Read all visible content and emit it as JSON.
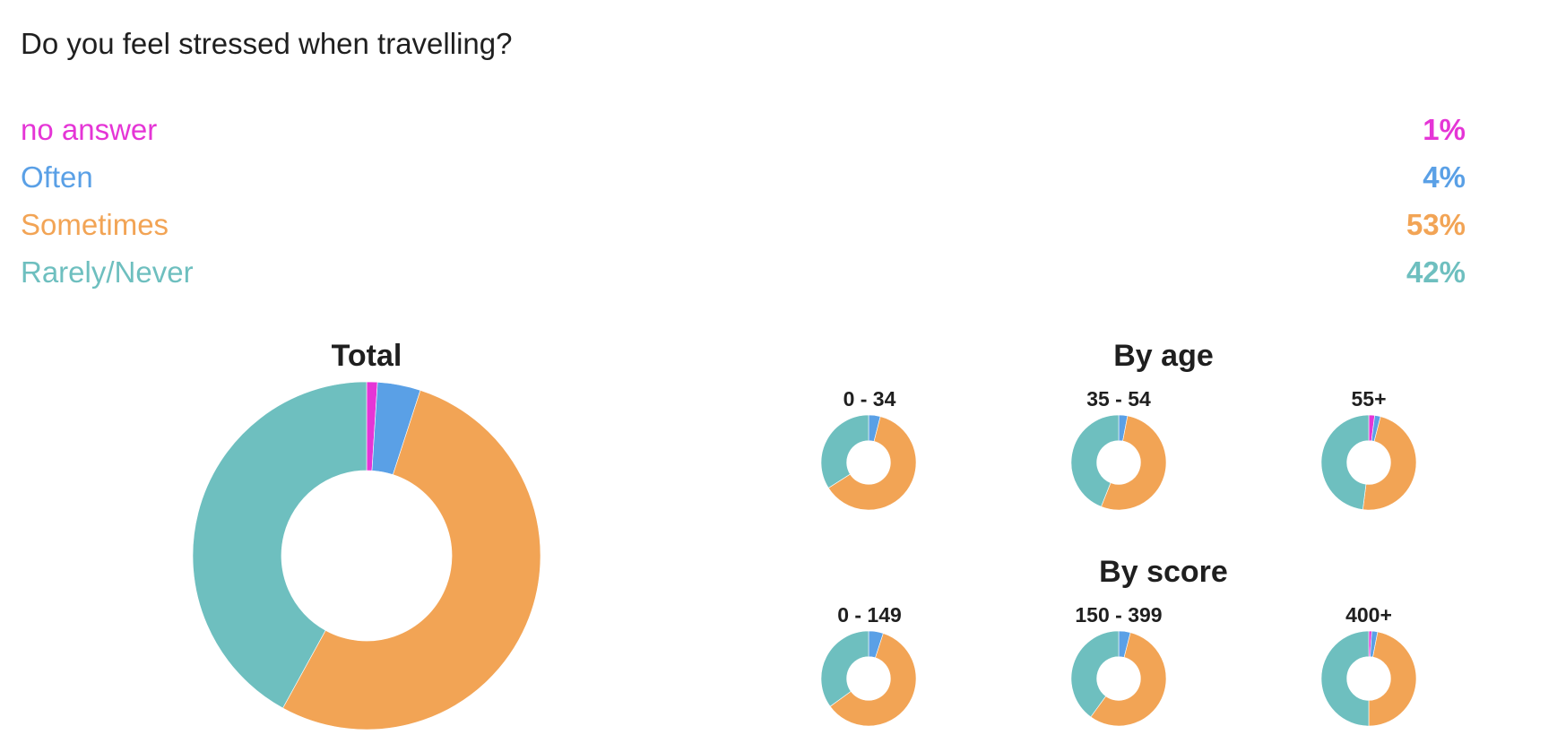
{
  "question": "Do you feel stressed when travelling?",
  "legend": [
    {
      "label": "no answer",
      "value": "1%",
      "color": "#e535d6"
    },
    {
      "label": "Often",
      "value": "4%",
      "color": "#5aa0e6"
    },
    {
      "label": "Sometimes",
      "value": "53%",
      "color": "#f2a455"
    },
    {
      "label": "Rarely/Never",
      "value": "42%",
      "color": "#6ebfbf"
    }
  ],
  "chart_data": [
    {
      "type": "pie",
      "title": "Total",
      "categories": [
        "no answer",
        "Often",
        "Sometimes",
        "Rarely/Never"
      ],
      "values": [
        1,
        4,
        53,
        42
      ]
    },
    {
      "type": "pie",
      "title": "By age",
      "groups": [
        {
          "label": "0 - 34",
          "values": [
            0,
            4,
            62,
            34
          ]
        },
        {
          "label": "35 - 54",
          "values": [
            0,
            3,
            53,
            44
          ]
        },
        {
          "label": "55+",
          "values": [
            2,
            2,
            48,
            48
          ]
        }
      ],
      "categories": [
        "no answer",
        "Often",
        "Sometimes",
        "Rarely/Never"
      ]
    },
    {
      "type": "pie",
      "title": "By score",
      "groups": [
        {
          "label": "0 - 149",
          "values": [
            0,
            5,
            60,
            35
          ]
        },
        {
          "label": "150 - 399",
          "values": [
            0,
            4,
            56,
            40
          ]
        },
        {
          "label": "400+",
          "values": [
            1,
            2,
            47,
            50
          ]
        }
      ],
      "categories": [
        "no answer",
        "Often",
        "Sometimes",
        "Rarely/Never"
      ]
    }
  ]
}
